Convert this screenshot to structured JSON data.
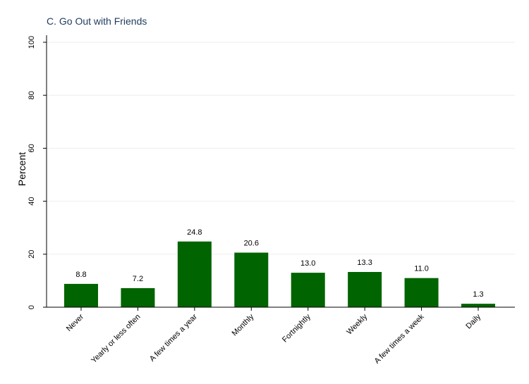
{
  "chart_data": {
    "type": "bar",
    "title": "C. Go Out with Friends",
    "xlabel": "",
    "ylabel": "Percent",
    "ylim": [
      0,
      100
    ],
    "yticks": [
      0,
      20,
      40,
      60,
      80,
      100
    ],
    "grid": true,
    "categories": [
      "Never",
      "Yearly or less often",
      "A few times a year",
      "Monthly",
      "Fortnightly",
      "Weekly",
      "A few times a week",
      "Daily"
    ],
    "values": [
      8.8,
      7.2,
      24.8,
      20.6,
      13.0,
      13.3,
      11.0,
      1.3
    ],
    "value_labels": [
      "8.8",
      "7.2",
      "24.8",
      "20.6",
      "13.0",
      "13.3",
      "11.0",
      "1.3"
    ],
    "colors": {
      "bar": "#006400",
      "axis": "#000000",
      "grid": "#eeeeee",
      "title": "#1f3a5f"
    }
  }
}
